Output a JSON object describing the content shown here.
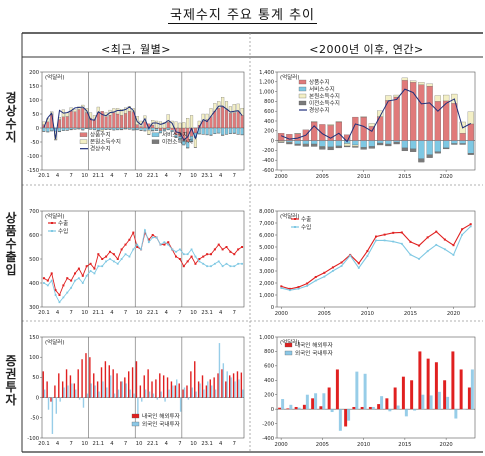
{
  "page": {
    "title": "국제수지 주요 통계 추이",
    "col_left": "<최근, 월별>",
    "col_right": "<2000년 이후, 연간>",
    "row_labels": [
      "경상수지",
      "상품수출입",
      "증권투자"
    ]
  },
  "colors": {
    "goods": "#e07a7a",
    "services": "#7ec8e3",
    "primary": "#f3efc5",
    "secondary": "#7a7a7a",
    "current": "#1f2f7a",
    "export": "#e02020",
    "import": "#7ec8e3",
    "foreign_inv": "#e02020",
    "domestic_inv": "#8cc8e6"
  },
  "chart_data": [
    {
      "id": "ca_monthly",
      "type": "bar",
      "unit": "(억달러)",
      "ylim": [
        -150,
        200
      ],
      "yticks": [
        -150,
        -100,
        -50,
        0,
        50,
        100,
        150,
        200
      ],
      "xticks": [
        "20.1",
        "4",
        "7",
        "10",
        "21.1",
        "4",
        "7",
        "10",
        "22.1",
        "4",
        "7",
        "10",
        "23.1",
        "4",
        "7"
      ],
      "year_breaks": [
        12,
        24,
        36
      ],
      "legend": [
        "상품수지",
        "본원소득수지",
        "경상수지",
        "서비스수지",
        "이전소득수지"
      ],
      "series": [
        {
          "name": "상품수지",
          "values": [
            12,
            22,
            48,
            -1,
            30,
            40,
            41,
            60,
            58,
            66,
            70,
            55,
            35,
            30,
            55,
            60,
            40,
            46,
            54,
            50,
            45,
            52,
            60,
            58,
            12,
            5,
            22,
            15,
            10,
            -3,
            -10,
            -5,
            20,
            -8,
            -25,
            -30,
            -45,
            -50,
            -30,
            -18,
            10,
            25,
            30,
            40,
            60,
            70,
            75,
            65,
            52,
            55,
            58,
            45
          ]
        },
        {
          "name": "서비스수지",
          "values": [
            -12,
            -13,
            -10,
            -11,
            -12,
            -9,
            -8,
            -5,
            -4,
            -3,
            -6,
            -2,
            -4,
            -6,
            -8,
            -6,
            -5,
            -4,
            -7,
            -6,
            -5,
            -3,
            -4,
            -6,
            -6,
            -8,
            -10,
            -8,
            -9,
            -6,
            -7,
            -5,
            -6,
            -5,
            -8,
            -12,
            -15,
            -20,
            -18,
            -16,
            -20,
            -22,
            -24,
            -25,
            -20,
            -18,
            -25,
            -22,
            -20,
            -18,
            -22,
            -24
          ]
        },
        {
          "name": "본원소득수지",
          "values": [
            10,
            12,
            10,
            -30,
            8,
            25,
            14,
            12,
            8,
            10,
            12,
            15,
            20,
            15,
            20,
            -5,
            15,
            18,
            16,
            20,
            22,
            20,
            18,
            12,
            30,
            20,
            22,
            -15,
            18,
            25,
            22,
            20,
            28,
            25,
            22,
            18,
            20,
            35,
            45,
            -35,
            15,
            25,
            20,
            30,
            28,
            25,
            35,
            30,
            25,
            30,
            28,
            26
          ]
        },
        {
          "name": "이전소득수지",
          "values": [
            -1,
            -2,
            -1,
            -1,
            -2,
            -1,
            -1,
            -2,
            -1,
            -1,
            -2,
            -1,
            -1,
            -1,
            -2,
            -1,
            -1,
            -2,
            -1,
            -1,
            -2,
            -1,
            -1,
            -2,
            -1,
            -2,
            -1,
            -1,
            -2,
            -1,
            -1,
            -2,
            -1,
            -1,
            -2,
            -1,
            -1,
            -2,
            -1,
            -1,
            -2,
            -1,
            -1,
            -2,
            -1,
            -1,
            -2,
            -1,
            -1,
            -2,
            -1,
            -1
          ]
        },
        {
          "name": "경상수지",
          "values": [
            2,
            37,
            53,
            -40,
            63,
            53,
            55,
            62,
            72,
            73,
            75,
            62,
            30,
            28,
            58,
            48,
            44,
            55,
            57,
            63,
            62,
            66,
            75,
            63,
            23,
            11,
            33,
            -2,
            18,
            18,
            13,
            17,
            27,
            17,
            -14,
            -17,
            -42,
            -32,
            -2,
            -37,
            4,
            30,
            23,
            42,
            60,
            78,
            78,
            68,
            57,
            60,
            62,
            45
          ]
        }
      ]
    },
    {
      "id": "ca_annual",
      "type": "bar",
      "unit": "(억달러)",
      "ylim": [
        -600,
        1400
      ],
      "yticks": [
        -600,
        -400,
        -200,
        0,
        200,
        400,
        600,
        800,
        1000,
        1200,
        1400
      ],
      "xticks": [
        "2000",
        "2005",
        "2010",
        "2015",
        "2020"
      ],
      "legend": [
        "상품수지",
        "서비스수지",
        "본원소득수지",
        "이전소득수지",
        "경상수지"
      ],
      "x": [
        2000,
        2001,
        2002,
        2003,
        2004,
        2005,
        2006,
        2007,
        2008,
        2009,
        2010,
        2011,
        2012,
        2013,
        2014,
        2015,
        2016,
        2017,
        2018,
        2019,
        2020,
        2021,
        2022,
        2023
      ],
      "series": [
        {
          "name": "상품수지",
          "values": [
            150,
            130,
            140,
            220,
            380,
            330,
            310,
            380,
            120,
            480,
            480,
            290,
            490,
            820,
            890,
            1230,
            1190,
            1140,
            1110,
            800,
            810,
            760,
            150,
            340
          ]
        },
        {
          "name": "서비스수지",
          "values": [
            -10,
            -30,
            -70,
            -70,
            -70,
            -120,
            -130,
            -110,
            -60,
            -90,
            -140,
            -120,
            -50,
            -70,
            -30,
            -150,
            -170,
            -370,
            -290,
            -230,
            -150,
            -60,
            -60,
            -260
          ]
        },
        {
          "name": "본원소득수지",
          "values": [
            -20,
            -10,
            10,
            -10,
            10,
            -10,
            20,
            10,
            -50,
            -30,
            10,
            60,
            120,
            100,
            40,
            50,
            30,
            50,
            50,
            120,
            120,
            190,
            230,
            250
          ]
        },
        {
          "name": "이전소득수지",
          "values": [
            -10,
            -30,
            -30,
            -40,
            -50,
            -50,
            -60,
            -40,
            -20,
            -20,
            -40,
            -40,
            -40,
            -40,
            -40,
            -60,
            -60,
            -70,
            -60,
            -30,
            -20,
            -20,
            -20,
            -30
          ]
        },
        {
          "name": "경상수지",
          "values": [
            100,
            30,
            50,
            110,
            300,
            140,
            50,
            150,
            -20,
            340,
            290,
            190,
            500,
            810,
            840,
            1050,
            980,
            750,
            770,
            600,
            760,
            850,
            260,
            350
          ]
        }
      ]
    },
    {
      "id": "trade_monthly",
      "type": "line",
      "unit": "(억달러)",
      "ylim": [
        300,
        700
      ],
      "yticks": [
        300,
        400,
        500,
        600,
        700
      ],
      "xticks": [
        "20.1",
        "4",
        "7",
        "10",
        "21.1",
        "4",
        "7",
        "10",
        "22.1",
        "4",
        "7",
        "10",
        "23.1",
        "4",
        "7"
      ],
      "year_breaks": [
        12,
        24,
        36
      ],
      "legend": [
        "수출",
        "수입"
      ],
      "series": [
        {
          "name": "수출",
          "values": [
            420,
            410,
            440,
            370,
            350,
            390,
            420,
            410,
            440,
            460,
            430,
            470,
            480,
            460,
            520,
            500,
            510,
            530,
            520,
            500,
            540,
            560,
            580,
            610,
            550,
            540,
            610,
            580,
            600,
            590,
            560,
            560,
            570,
            540,
            510,
            500,
            470,
            490,
            510,
            480,
            500,
            510,
            520,
            520,
            540,
            560,
            540,
            550,
            530,
            520,
            540,
            550
          ]
        },
        {
          "name": "수입",
          "values": [
            400,
            390,
            410,
            350,
            320,
            340,
            360,
            380,
            410,
            420,
            400,
            430,
            450,
            440,
            470,
            470,
            490,
            500,
            490,
            480,
            500,
            520,
            510,
            540,
            560,
            540,
            620,
            570,
            590,
            590,
            560,
            570,
            560,
            540,
            530,
            540,
            520,
            520,
            540,
            510,
            490,
            480,
            470,
            470,
            480,
            490,
            470,
            480,
            470,
            470,
            480,
            480
          ]
        }
      ]
    },
    {
      "id": "trade_annual",
      "type": "line",
      "unit": "(억달러)",
      "ylim": [
        0,
        8000
      ],
      "yticks": [
        0,
        1000,
        2000,
        3000,
        4000,
        5000,
        6000,
        7000,
        8000
      ],
      "xticks": [
        "2000",
        "2005",
        "2010",
        "2015",
        "2020"
      ],
      "legend": [
        "수출",
        "수입"
      ],
      "x": [
        2000,
        2001,
        2002,
        2003,
        2004,
        2005,
        2006,
        2007,
        2008,
        2009,
        2010,
        2011,
        2012,
        2013,
        2014,
        2015,
        2016,
        2017,
        2018,
        2019,
        2020,
        2021,
        2022
      ],
      "series": [
        {
          "name": "수출",
          "values": [
            1720,
            1510,
            1660,
            1960,
            2500,
            2850,
            3300,
            3710,
            4340,
            3640,
            4660,
            5870,
            6030,
            6180,
            6210,
            5430,
            5120,
            5800,
            6280,
            5620,
            5150,
            6480,
            6900
          ]
        },
        {
          "name": "수입",
          "values": [
            1580,
            1400,
            1520,
            1760,
            2200,
            2530,
            3010,
            3420,
            4290,
            3260,
            4250,
            5550,
            5550,
            5450,
            5270,
            4360,
            4010,
            4650,
            5180,
            4810,
            4340,
            6020,
            6720
          ]
        }
      ]
    },
    {
      "id": "sec_monthly",
      "type": "bar",
      "unit": "(억달러)",
      "ylim": [
        -100,
        150
      ],
      "yticks": [
        -100,
        -50,
        0,
        50,
        100,
        150
      ],
      "xticks": [
        "20.1",
        "4",
        "7",
        "10",
        "21.1",
        "4",
        "7",
        "10",
        "22.1",
        "4",
        "7",
        "10",
        "23.1",
        "4",
        "7"
      ],
      "year_breaks": [
        12,
        24,
        36
      ],
      "legend": [
        "내국인 해외투자",
        "외국인 국내투자"
      ],
      "series": [
        {
          "name": "내국인 해외투자",
          "values": [
            65,
            40,
            -10,
            30,
            60,
            40,
            70,
            55,
            35,
            70,
            95,
            110,
            100,
            60,
            40,
            75,
            90,
            80,
            70,
            60,
            40,
            50,
            65,
            75,
            90,
            30,
            55,
            70,
            40,
            45,
            60,
            55,
            50,
            40,
            30,
            35,
            20,
            30,
            65,
            90,
            40,
            55,
            30,
            45,
            50,
            60,
            70,
            40,
            55,
            60,
            65,
            62
          ]
        },
        {
          "name": "외국인 국내투자",
          "values": [
            20,
            -30,
            -90,
            -40,
            -10,
            25,
            30,
            35,
            20,
            -5,
            -25,
            10,
            35,
            30,
            15,
            40,
            25,
            55,
            10,
            20,
            40,
            35,
            20,
            10,
            -45,
            -10,
            20,
            15,
            10,
            -5,
            15,
            -10,
            20,
            30,
            45,
            -35,
            25,
            -5,
            25,
            15,
            35,
            20,
            40,
            30,
            20,
            135,
            85,
            65,
            50,
            40,
            45,
            20
          ]
        }
      ]
    },
    {
      "id": "sec_annual",
      "type": "bar",
      "unit": "(억달러)",
      "ylim": [
        -400,
        1000
      ],
      "yticks": [
        -400,
        -200,
        0,
        200,
        400,
        600,
        800,
        1000
      ],
      "xticks": [
        "2000",
        "2005",
        "2010",
        "2015",
        "2020"
      ],
      "legend": [
        "내국인 해외투자",
        "외국인 국내투자"
      ],
      "x": [
        2000,
        2001,
        2002,
        2003,
        2004,
        2005,
        2006,
        2007,
        2008,
        2009,
        2010,
        2011,
        2012,
        2013,
        2014,
        2015,
        2016,
        2017,
        2018,
        2019,
        2020,
        2021,
        2022,
        2023
      ],
      "series": [
        {
          "name": "내국인 해외투자",
          "values": [
            20,
            10,
            30,
            60,
            150,
            40,
            300,
            550,
            -240,
            30,
            30,
            30,
            70,
            150,
            300,
            450,
            400,
            800,
            700,
            650,
            400,
            800,
            550,
            300
          ]
        },
        {
          "name": "외국인 국내투자",
          "values": [
            140,
            60,
            20,
            200,
            220,
            220,
            -40,
            -300,
            -160,
            520,
            490,
            30,
            180,
            -30,
            50,
            -100,
            -20,
            200,
            190,
            240,
            170,
            -130,
            0,
            550
          ]
        }
      ]
    }
  ]
}
